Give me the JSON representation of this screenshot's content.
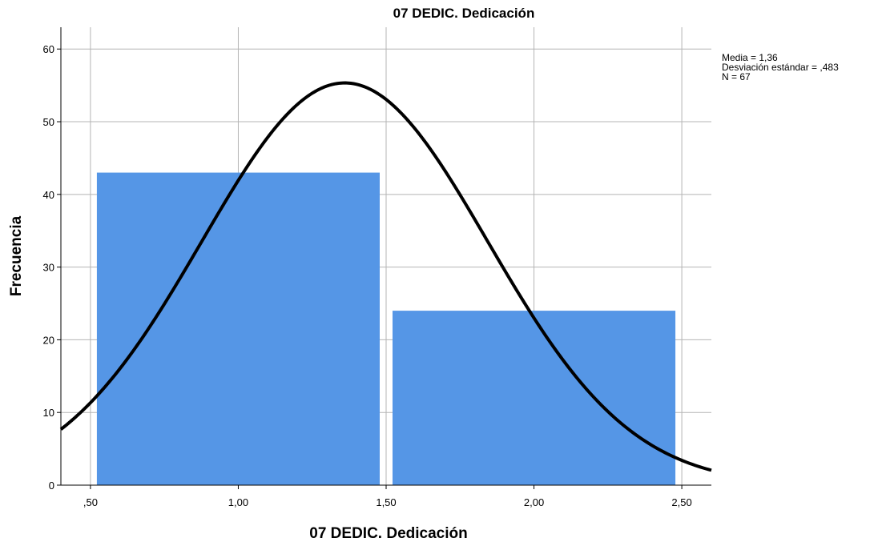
{
  "chart_data": {
    "type": "bar",
    "title": "07 DEDIC. Dedicación",
    "xlabel": "07 DEDIC. Dedicación",
    "ylabel": "Frecuencia",
    "xlim": [
      0.4,
      2.6
    ],
    "ylim": [
      0,
      63
    ],
    "x_ticks": [
      {
        "value": 0.5,
        "label": ",50"
      },
      {
        "value": 1.0,
        "label": "1,00"
      },
      {
        "value": 1.5,
        "label": "1,50"
      },
      {
        "value": 2.0,
        "label": "2,00"
      },
      {
        "value": 2.5,
        "label": "2,50"
      }
    ],
    "y_ticks": [
      0,
      10,
      20,
      30,
      40,
      50,
      60
    ],
    "bins": [
      {
        "from": 0.5,
        "to": 1.5,
        "value": 43
      },
      {
        "from": 1.5,
        "to": 2.5,
        "value": 24
      }
    ],
    "normal_curve": {
      "mean": 1.36,
      "std": 0.483,
      "n": 67,
      "bin_width": 1.0
    },
    "stats_lines": [
      "Media = 1,36",
      "Desviación estándar = ,483",
      "N = 67"
    ],
    "grid": true,
    "bar_color": "#5596e6",
    "curve_color": "#000000",
    "grid_color": "#b4b4b4"
  }
}
